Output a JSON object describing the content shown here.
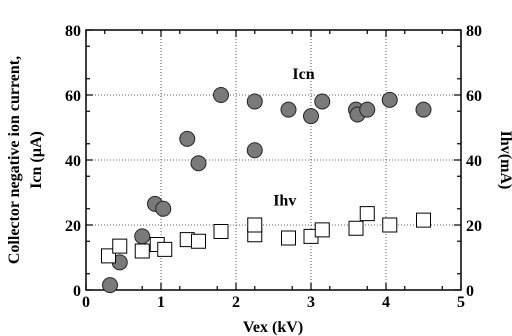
{
  "chart_data": {
    "type": "scatter",
    "title": "",
    "xlabel": "Vex (kV)",
    "ylabel_left_line1": "Collector negative ion current,",
    "ylabel_left_line2": "Icn (µA)",
    "ylabel_right": "Ihv(mA)",
    "xlim": [
      0,
      5
    ],
    "ylim_left": [
      0,
      80
    ],
    "ylim_right": [
      0,
      80
    ],
    "x_ticks": [
      "0",
      "1",
      "2",
      "3",
      "4",
      "5"
    ],
    "y_ticks_left": [
      "0",
      "20",
      "40",
      "60",
      "80"
    ],
    "y_ticks_right": [
      "0",
      "20",
      "40",
      "60",
      "80"
    ],
    "grid": true,
    "series": [
      {
        "name": "Icn",
        "marker": "filled-circle",
        "color": "#7a7a7a",
        "points": [
          [
            0.32,
            1.5
          ],
          [
            0.45,
            8.5
          ],
          [
            0.75,
            16.5
          ],
          [
            0.92,
            26.5
          ],
          [
            1.03,
            25.0
          ],
          [
            1.35,
            46.5
          ],
          [
            1.5,
            39.0
          ],
          [
            1.8,
            60.0
          ],
          [
            2.25,
            58.0
          ],
          [
            2.25,
            43.0
          ],
          [
            2.7,
            55.5
          ],
          [
            3.0,
            53.5
          ],
          [
            3.15,
            58.0
          ],
          [
            3.6,
            55.5
          ],
          [
            3.62,
            54.0
          ],
          [
            3.75,
            55.5
          ],
          [
            4.05,
            58.5
          ],
          [
            4.5,
            55.5
          ]
        ]
      },
      {
        "name": "Ihv",
        "marker": "open-square",
        "color": "#000000",
        "points": [
          [
            0.3,
            10.5
          ],
          [
            0.45,
            13.5
          ],
          [
            0.75,
            12.0
          ],
          [
            0.95,
            14.0
          ],
          [
            1.05,
            12.5
          ],
          [
            1.35,
            15.5
          ],
          [
            1.5,
            15.0
          ],
          [
            1.8,
            18.0
          ],
          [
            2.25,
            17.0
          ],
          [
            2.25,
            20.0
          ],
          [
            2.7,
            16.0
          ],
          [
            3.0,
            16.5
          ],
          [
            3.15,
            18.5
          ],
          [
            3.6,
            19.0
          ],
          [
            3.75,
            23.5
          ],
          [
            4.05,
            20.0
          ],
          [
            4.5,
            21.5
          ]
        ]
      }
    ],
    "annotations": [
      {
        "text": "Icn",
        "x": 2.9,
        "y": 65
      },
      {
        "text": "Ihv",
        "x": 2.65,
        "y": 26
      }
    ]
  }
}
